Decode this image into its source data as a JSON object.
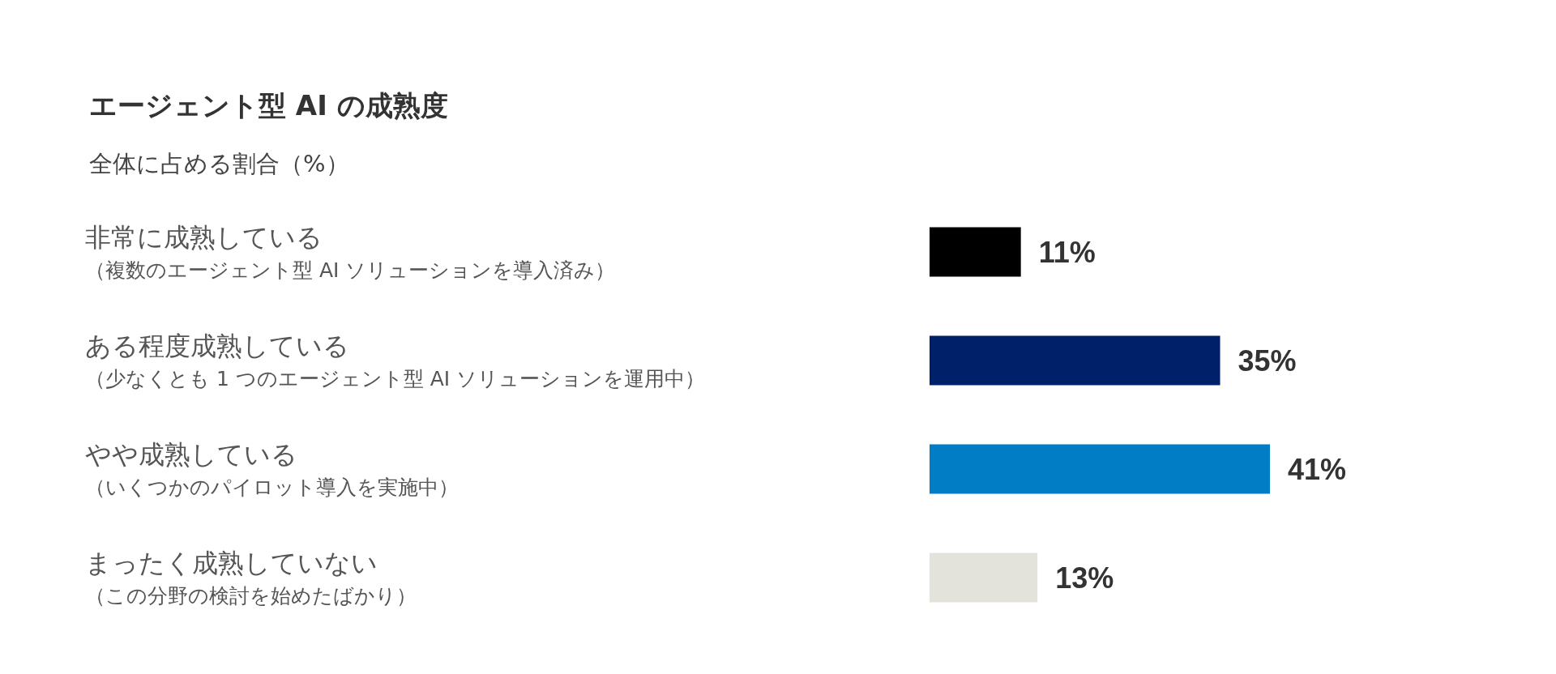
{
  "chart_data": {
    "type": "bar",
    "orientation": "horizontal",
    "title": "エージェント型 AI の成熟度",
    "subtitle": "全体に占める割合（%）",
    "categories": [
      "非常に成熟している（複数のエージェント型 AI ソリューションを導入済み）",
      "ある程度成熟している（少なくとも 1 つのエージェント型 AI ソリューションを運用中）",
      "やや成熟している（いくつかのパイロット導入を実施中）",
      "まったく成熟していない（この分野の検討を始めたばかり）"
    ],
    "values": [
      11,
      35,
      41,
      13
    ],
    "colors": [
      "#000000",
      "#002169",
      "#007dc5",
      "#e3e3dc"
    ],
    "value_labels": [
      "11%",
      "35%",
      "41%",
      "13%"
    ],
    "grid": false
  }
}
